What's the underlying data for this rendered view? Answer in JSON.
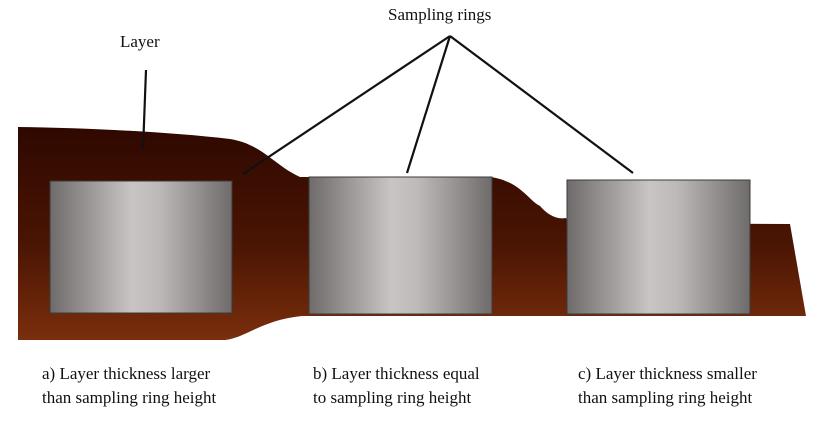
{
  "labels": {
    "layer": "Layer",
    "sampling_rings": "Sampling rings"
  },
  "captions": [
    {
      "line1": "a) Layer thickness larger",
      "line2": "than sampling ring height"
    },
    {
      "line1": "b) Layer thickness equal",
      "line2": "to sampling ring height"
    },
    {
      "line1": "c) Layer thickness smaller",
      "line2": "than sampling ring height"
    }
  ],
  "colors": {
    "layer_dark": "#2f0800",
    "layer_light": "#7a2e0c",
    "ring_light": "#c9c5c5",
    "ring_dark": "#6f6b6b",
    "ring_border": "#3a3a3a",
    "leader_line": "#111111"
  }
}
